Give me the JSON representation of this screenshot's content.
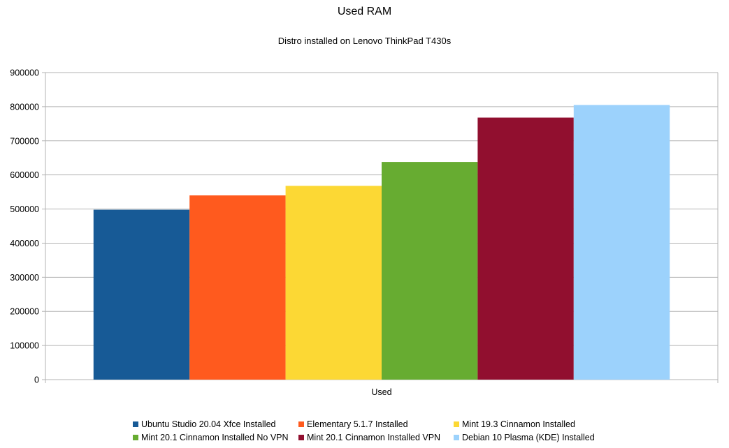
{
  "chart_data": {
    "type": "bar",
    "title": "Used RAM",
    "subtitle": "Distro installed on Lenovo ThinkPad T430s",
    "categories": [
      "Used"
    ],
    "xlabel": "",
    "ylabel": "",
    "ylim": [
      0,
      900000
    ],
    "yticks": [
      "0",
      "100000",
      "200000",
      "300000",
      "400000",
      "500000",
      "600000",
      "700000",
      "800000",
      "900000"
    ],
    "grid": true,
    "legend_position": "bottom",
    "series": [
      {
        "name": "Ubuntu Studio 20.04 Xfce Installed",
        "values": [
          498000
        ],
        "color": "#175a96"
      },
      {
        "name": "Elementary 5.1.7 Installed",
        "values": [
          540000
        ],
        "color": "#ff5a1e"
      },
      {
        "name": "Mint 19.3 Cinnamon Installed",
        "values": [
          568000
        ],
        "color": "#fcd834"
      },
      {
        "name": "Mint 20.1 Cinnamon Installed No VPN",
        "values": [
          638000
        ],
        "color": "#67ac31"
      },
      {
        "name": "Mint 20.1 Cinnamon Installed VPN",
        "values": [
          768000
        ],
        "color": "#910f2f"
      },
      {
        "name": "Debian 10 Plasma (KDE) Installed",
        "values": [
          805000
        ],
        "color": "#9cd2fc"
      }
    ]
  }
}
